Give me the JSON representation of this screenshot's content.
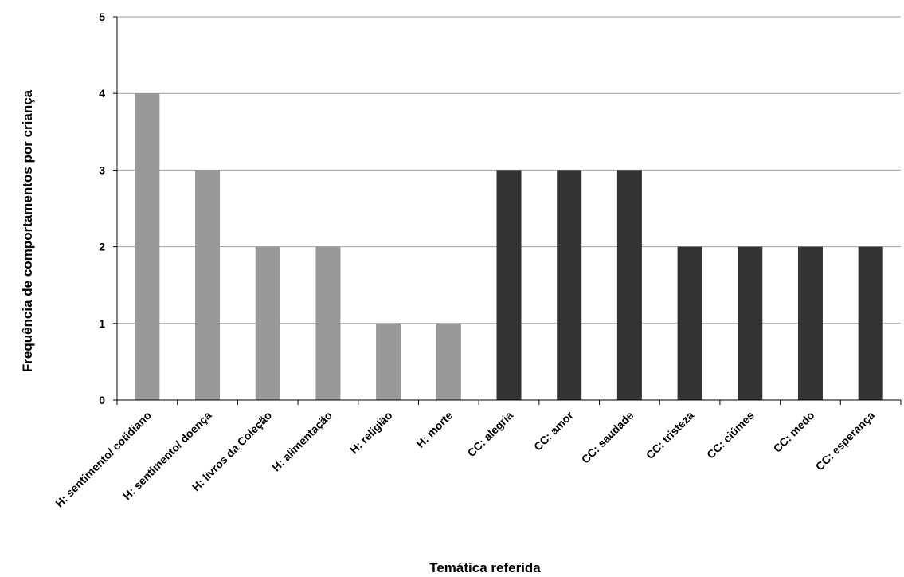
{
  "chart_data": {
    "type": "bar",
    "title": "",
    "xlabel": "Temática referida",
    "ylabel": "Frequência de comportamentos por criança",
    "ylim": [
      0,
      5
    ],
    "yticks": [
      0,
      1,
      2,
      3,
      4,
      5
    ],
    "grid": true,
    "categories": [
      "H: sentimento/ cotidiano",
      "H: sentimento/ doença",
      "H: livros da Coleção",
      "H: alimentação",
      "H: religião",
      "H: morte",
      "CC: alegria",
      "CC: amor",
      "CC: saudade",
      "CC: tristeza",
      "CC: ciúmes",
      "CC: medo",
      "CC: esperança"
    ],
    "values": [
      4,
      3,
      2,
      2,
      1,
      1,
      3,
      3,
      3,
      2,
      2,
      2,
      2
    ],
    "bar_colors": [
      "#999999",
      "#999999",
      "#999999",
      "#999999",
      "#999999",
      "#999999",
      "#333333",
      "#333333",
      "#333333",
      "#333333",
      "#333333",
      "#333333",
      "#333333"
    ]
  }
}
